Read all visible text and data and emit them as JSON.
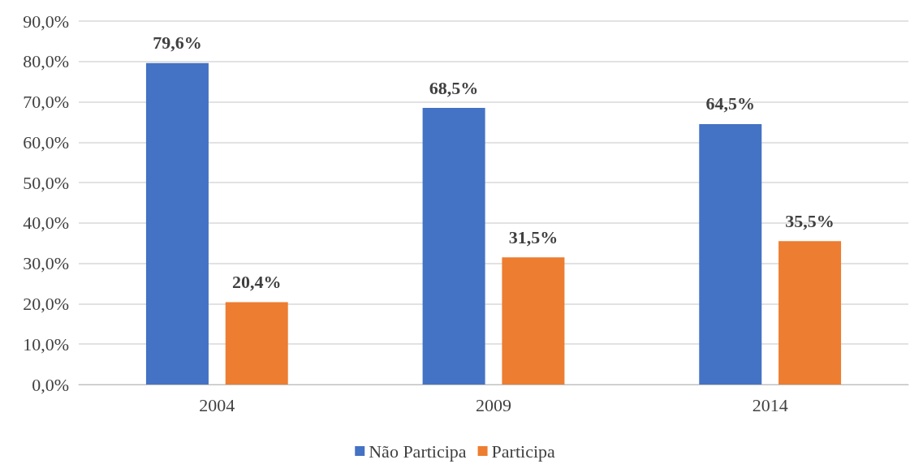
{
  "chart_data": {
    "type": "bar",
    "categories": [
      "2004",
      "2009",
      "2014"
    ],
    "series": [
      {
        "name": "Não Participa",
        "color": "#4472c4",
        "values": [
          79.6,
          68.5,
          64.5
        ],
        "value_labels": [
          "79,6%",
          "68,5%",
          "64,5%"
        ]
      },
      {
        "name": "Participa",
        "color": "#ed7d31",
        "values": [
          20.4,
          31.5,
          35.5
        ],
        "value_labels": [
          "20,4%",
          "31,5%",
          "35,5%"
        ]
      }
    ],
    "ylim": [
      0,
      90
    ],
    "yticks": [
      {
        "value": 0,
        "label": "0,0%"
      },
      {
        "value": 10,
        "label": "10,0%"
      },
      {
        "value": 20,
        "label": "20,0%"
      },
      {
        "value": 30,
        "label": "30,0%"
      },
      {
        "value": 40,
        "label": "40,0%"
      },
      {
        "value": 50,
        "label": "50,0%"
      },
      {
        "value": 60,
        "label": "60,0%"
      },
      {
        "value": 70,
        "label": "70,0%"
      },
      {
        "value": 80,
        "label": "80,0%"
      },
      {
        "value": 90,
        "label": "90,0%"
      }
    ],
    "grid": "y",
    "legend": "bottom"
  }
}
